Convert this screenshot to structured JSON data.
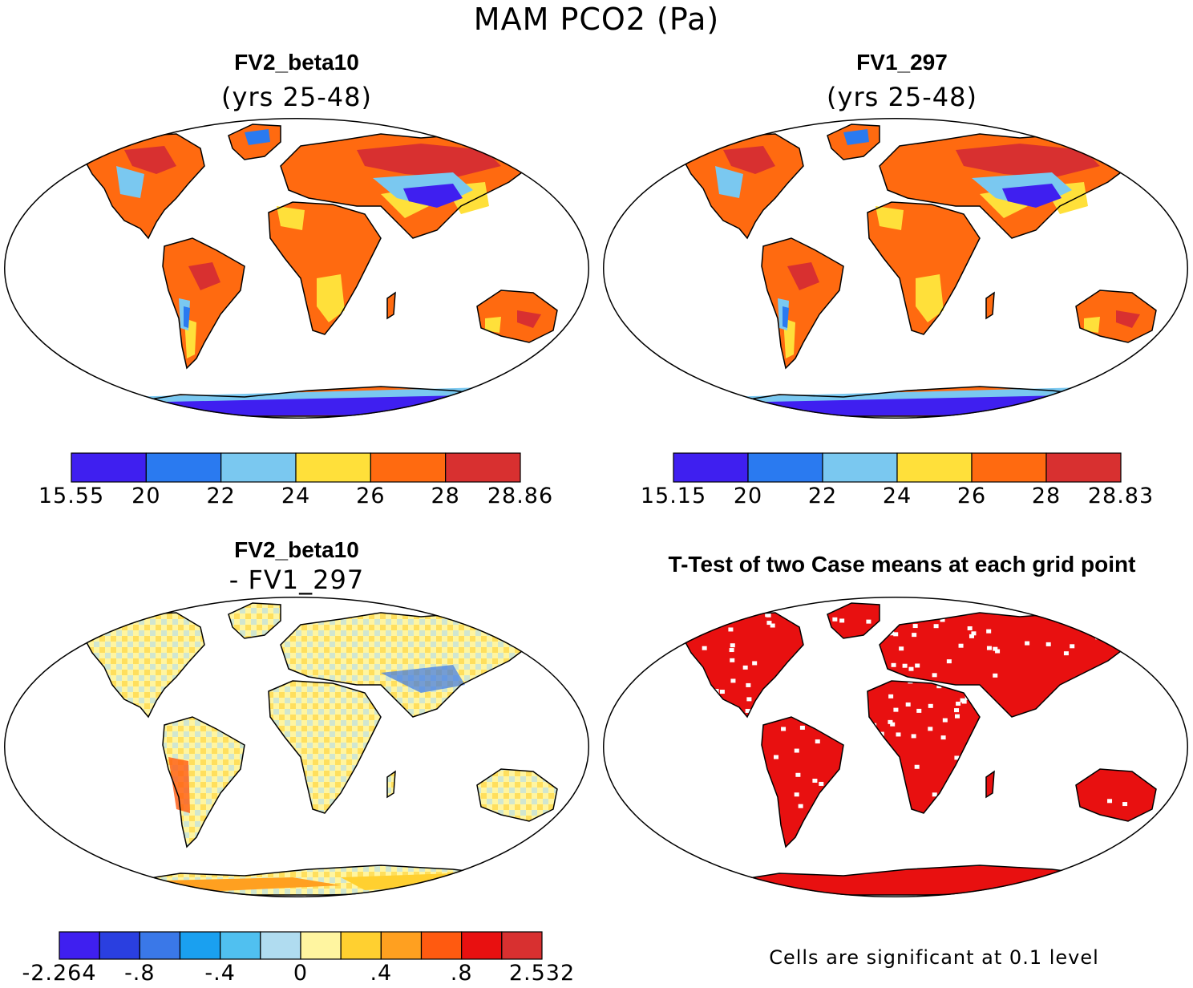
{
  "figure": {
    "title": "MAM PCO2 (Pa)"
  },
  "panels": [
    {
      "title": "FV2_beta10",
      "subtitle": "(yrs 25-48)",
      "kind": "field",
      "colorbar": {
        "colors": [
          "#3f1ff0",
          "#2a7af0",
          "#7ac8f0",
          "#ffe03a",
          "#ff6a10",
          "#d83030"
        ],
        "tick_labels": [
          "15.55",
          "20",
          "22",
          "24",
          "26",
          "28",
          "28.86"
        ]
      }
    },
    {
      "title": "FV1_297",
      "subtitle": "(yrs 25-48)",
      "kind": "field",
      "colorbar": {
        "colors": [
          "#3f1ff0",
          "#2a7af0",
          "#7ac8f0",
          "#ffe03a",
          "#ff6a10",
          "#d83030"
        ],
        "tick_labels": [
          "15.15",
          "20",
          "22",
          "24",
          "26",
          "28",
          "28.83"
        ]
      }
    },
    {
      "title": "FV2_beta10",
      "subtitle": "- FV1_297",
      "kind": "difference",
      "colorbar": {
        "colors": [
          "#3f1ff0",
          "#2a3fe0",
          "#3a78e8",
          "#1aa0f0",
          "#50c0f0",
          "#b0dcf0",
          "#fff5a0",
          "#ffd030",
          "#ffa020",
          "#ff5a10",
          "#e81010",
          "#d83030"
        ],
        "tick_labels": [
          "-2.264",
          "",
          "-.8",
          "",
          "-.4",
          "",
          "0",
          "",
          ".4",
          "",
          ".8",
          "",
          "2.532"
        ]
      }
    },
    {
      "title": "T-Test of two Case means at each grid point",
      "subtitle": "",
      "kind": "significance",
      "note": "Cells are significant at 0.1 level",
      "fill_color": "#e81010"
    }
  ]
}
